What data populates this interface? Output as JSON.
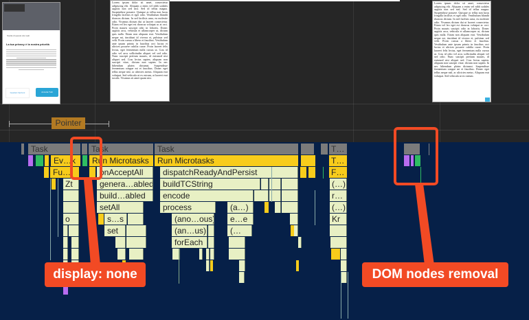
{
  "filmstrip": {
    "frame1": {
      "small_text": "Scelta di questo sito web",
      "title": "La tua privacy è la nostra priorità",
      "manage_button": "Gestisci Opzioni",
      "accept_button": "Accetta Tutti"
    },
    "frame2": {
      "text": "Lorem ipsum dolor sit amet, consectetur adipiscing elit. Aliquam a enim vel nibh sodales sagittis non sed nisl. Sed id tellus magna. Suspendisse posuere. Quisque ac tellus non lacus fringilla facilisis et eget odio. Vestibulum blandit rhoncus dictum. In sed facilisis urna, eu molestie odio. Vivamus dictum dui ut laoreet consectetur. Etiam vel leo eget est rhoncus volutpat ac at orci. Proin mauris suscipit odio in lobortis. Donec sagittis arcu, vehicula et ullamcorper ut, dictum quis nulla. Etiam non aliquam erat. Vestibulum neque mi, tincidunt id viverra et, pulvinar sed velit. Proin cursus a libero et faucibus. Vestibulum ante ipsum primis in faucibus orci luctus et ultrices posuere cubilia curae. Proin laoreet felis lectus, eget fermentum nulla cursus ut. Cras id odio vel arcu sollicitudin aliquet vel sed odio. Nunc suscipit pretium mauris, id euismod nisi aliquet sed. Cras lectus sapien, aliquam non suscipit vitae, dictum non sapien. In nec bibendum platea dictumst. Suspendisse fermentum congue mi et faucibus. Donec eget tellus neque nisl, ac ultricies metus. Aliquam erat volutpat. Sed vehicula ut ex rutrum, at laoreet erat iaculis. Vivamus sit amet quam nisi."
    },
    "frame3": {
      "text": "Lorem ipsum dolor sit amet, consectetur adipiscing elit. Aliquam a enim vel nibh sodales sagittis non sed nisl. Sed id tellus magna. Suspendisse posuere. Quisque ac tellus non lacus fringilla facilisis et eget odio. Vestibulum blandit rhoncus dictum. In sed facilisis urna, eu molestie odio. Vivamus dictum dui ut laoreet consectetur. Etiam vel leo eget est rhoncus volutpat ac orci. Proin mauris suscipit odio in lobortis. Donec sagittis arcu, vehicula et ullamcorper ut, dictum quis nulla. Etiam non aliquam erat. Vestibulum neque mi, tincidunt id viverra et, pulvinar sed velit. Proin cursus a libero et faucibus. Vestibulum ante ipsum primis in faucibus orci luctus et ultrices posuere cubilia curae. Proin laoreet felis lectus, eget fermentum nulla cursus ut. Cras id odio vel arcu sollicitudin aliquet vel sed odio. Nunc suscipit pretium mauris, id euismod nisi aliquet sed. Cras lectus sapien, aliquam non suscipit vitae, dictum non sapien. In nec bibendum platea dictumst. Suspendisse fermentum congue mi et faucibus. Donec eget tellus neque nisl, ac ultricies metus. Aliquam erat volutpat. Sed vehicula ut ex rutrum."
    }
  },
  "interactions": {
    "pointer_label": "Pointer"
  },
  "flame_chart": {
    "colors": {
      "task": "#7b7b7b",
      "scripting": "#f8cc1b",
      "function": "#e8f0c4",
      "rendering": "#b86cf0",
      "painting": "#2fbd62",
      "background": "#062048"
    },
    "labels": {
      "task": "Task",
      "task_short": "T…",
      "event": "Ev…k",
      "function_call": "Fu…",
      "function_short": "F…",
      "run_microtasks": "Run Microtasks",
      "on_accept_all": "onAcceptAll",
      "dispatch": "dispatchReadyAndPersist",
      "zt": "Zt",
      "genera_abled": "genera…abled",
      "build_tc_string": "buildTCString",
      "build_abled": "build…abled",
      "encode": "encode",
      "set_all": "setAll",
      "process": "process",
      "anon_a": "(a…)",
      "o": "o",
      "s_s": "s…s",
      "anon_ous": "(ano…ous)",
      "e_e": "e…e",
      "set": "set",
      "anon_us": "(an…us)",
      "paren_open": "(…",
      "for_each": "forEach",
      "paren": "(…)",
      "r": "r…",
      "kr": "Kr"
    }
  },
  "annotations": {
    "display_none": "display: none",
    "dom_nodes_removal": "DOM nodes removal",
    "accent_color": "#f24a24"
  }
}
